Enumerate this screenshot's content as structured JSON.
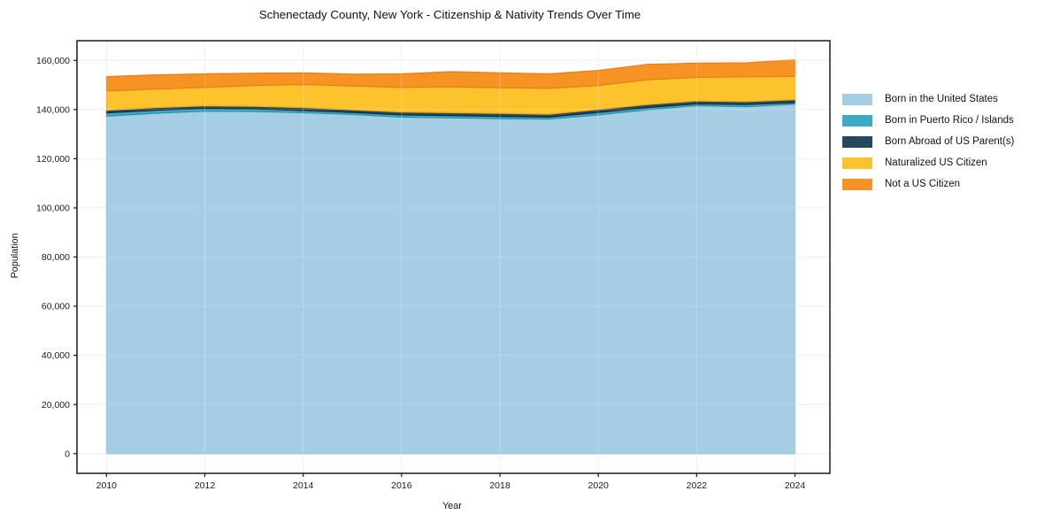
{
  "chart_data": {
    "type": "area",
    "stacked": true,
    "title": "Schenectady County, New York - Citizenship & Nativity Trends Over Time",
    "xlabel": "Year",
    "ylabel": "Population",
    "x": [
      2010,
      2011,
      2012,
      2013,
      2014,
      2015,
      2016,
      2017,
      2018,
      2019,
      2020,
      2021,
      2022,
      2023,
      2024
    ],
    "series": [
      {
        "name": "Born in the United States",
        "color": "#a5cee4",
        "edge_color": "#8cb9d3",
        "values": [
          137300,
          138500,
          139300,
          139200,
          138700,
          138000,
          136900,
          136600,
          136300,
          136100,
          137800,
          139900,
          141600,
          141100,
          142200
        ]
      },
      {
        "name": "Born in Puerto Rico / Islands",
        "color": "#3dabc6",
        "edge_color": "#2e92ab",
        "values": [
          1300,
          1200,
          1100,
          1000,
          900,
          800,
          900,
          900,
          900,
          800,
          1000,
          900,
          700,
          900,
          600
        ]
      },
      {
        "name": "Born Abroad of US Parent(s)",
        "color": "#24495d",
        "edge_color": "#152e3d",
        "values": [
          1100,
          1100,
          1100,
          1100,
          1200,
          1100,
          1200,
          1200,
          1200,
          1200,
          1200,
          1200,
          1200,
          1200,
          1200
        ]
      },
      {
        "name": "Naturalized US Citizen",
        "color": "#fcc32d",
        "edge_color": "#e9a81e",
        "values": [
          7900,
          7500,
          7500,
          8500,
          9400,
          9700,
          10000,
          10500,
          10500,
          10500,
          9800,
          10100,
          9600,
          10100,
          9500
        ]
      },
      {
        "name": "Not a US Citizen",
        "color": "#f79324",
        "edge_color": "#e67f1b",
        "values": [
          5800,
          5800,
          5500,
          5000,
          4700,
          4800,
          5500,
          6200,
          6000,
          5900,
          6100,
          6300,
          5800,
          5700,
          6700
        ]
      }
    ],
    "x_ticks": [
      2010,
      2012,
      2014,
      2016,
      2018,
      2020,
      2022,
      2024
    ],
    "x_tick_labels": [
      "2010",
      "2012",
      "2014",
      "2016",
      "2018",
      "2020",
      "2022",
      "2024"
    ],
    "y_ticks": [
      0,
      20000,
      40000,
      60000,
      80000,
      100000,
      120000,
      140000,
      160000
    ],
    "y_tick_labels": [
      "0",
      "20,000",
      "40,000",
      "60,000",
      "80,000",
      "100,000",
      "120,000",
      "140,000",
      "160,000"
    ],
    "xlim": [
      2009.4,
      2024.71
    ],
    "ylim": [
      -8000,
      168000
    ],
    "grid": true,
    "grid_color": "#ececf2",
    "legend_position": "right-outside",
    "legend_frame": false,
    "axis_border_color": "#1a1a1a",
    "background_color": "#ffffff"
  }
}
